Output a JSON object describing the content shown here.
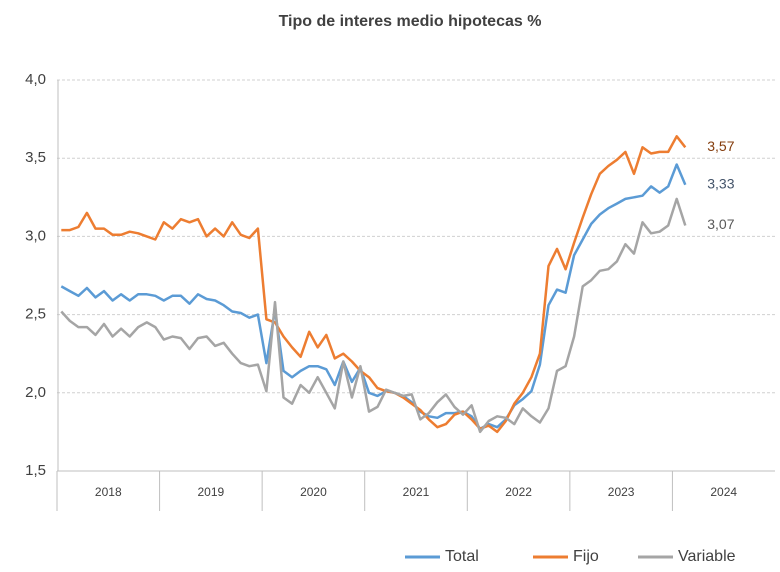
{
  "chart_data": {
    "type": "line",
    "title": "Tipo de interes medio hipotecas %",
    "categories": [
      null,
      null,
      null,
      null,
      null,
      null,
      "2018",
      null,
      null,
      null,
      null,
      null,
      null,
      null,
      null,
      null,
      null,
      null,
      "2019",
      null,
      null,
      null,
      null,
      null,
      null,
      null,
      null,
      null,
      null,
      null,
      "2020",
      null,
      null,
      null,
      null,
      null,
      null,
      null,
      null,
      null,
      null,
      null,
      "2021",
      null,
      null,
      null,
      null,
      null,
      null,
      null,
      null,
      null,
      null,
      null,
      "2022",
      null,
      null,
      null,
      null,
      null,
      null,
      null,
      null,
      null,
      null,
      null,
      "2023",
      null,
      null,
      null,
      null,
      null,
      null,
      null,
      null,
      null,
      null,
      null,
      "2024",
      null,
      null,
      null,
      null,
      null
    ],
    "series": [
      {
        "name": "Total",
        "color": "#5b9bd5",
        "label_color": "#44546a",
        "values": [
          2.68,
          2.65,
          2.62,
          2.67,
          2.61,
          2.65,
          2.59,
          2.63,
          2.59,
          2.63,
          2.63,
          2.62,
          2.59,
          2.62,
          2.62,
          2.57,
          2.63,
          2.6,
          2.59,
          2.56,
          2.52,
          2.51,
          2.48,
          2.5,
          2.19,
          2.53,
          2.14,
          2.1,
          2.14,
          2.17,
          2.17,
          2.15,
          2.05,
          2.2,
          2.07,
          2.16,
          2.0,
          1.98,
          2.01,
          2.0,
          1.98,
          1.94,
          1.88,
          1.85,
          1.84,
          1.87,
          1.87,
          1.88,
          1.85,
          1.77,
          1.8,
          1.78,
          1.83,
          1.92,
          1.96,
          2.01,
          2.18,
          2.56,
          2.66,
          2.64,
          2.88,
          2.98,
          3.08,
          3.14,
          3.18,
          3.21,
          3.24,
          3.25,
          3.26,
          3.32,
          3.28,
          3.32,
          3.46,
          3.33,
          null,
          null,
          null,
          null,
          null,
          null,
          null,
          null,
          null,
          null
        ],
        "value_labels": [
          null,
          null,
          null,
          null,
          null,
          null,
          null,
          null,
          null,
          null,
          null,
          null,
          null,
          null,
          null,
          null,
          null,
          null,
          null,
          null,
          null,
          null,
          null,
          null,
          null,
          null,
          null,
          null,
          null,
          null,
          null,
          null,
          null,
          null,
          null,
          null,
          null,
          null,
          null,
          null,
          null,
          null,
          null,
          null,
          null,
          null,
          null,
          null,
          null,
          null,
          null,
          null,
          null,
          null,
          null,
          null,
          null,
          null,
          null,
          null,
          null,
          null,
          null,
          null,
          null,
          null,
          null,
          null,
          null,
          null,
          null,
          null,
          null,
          "3,33",
          null,
          null,
          null,
          null,
          null,
          null,
          null,
          null,
          null,
          null
        ]
      },
      {
        "name": "Fijo",
        "color": "#ed7d31",
        "label_color": "#843c0c",
        "values": [
          3.04,
          3.04,
          3.06,
          3.15,
          3.05,
          3.05,
          3.01,
          3.01,
          3.03,
          3.02,
          3.0,
          2.98,
          3.09,
          3.05,
          3.11,
          3.09,
          3.11,
          3.0,
          3.05,
          3.0,
          3.09,
          3.01,
          2.99,
          3.05,
          2.47,
          2.45,
          2.36,
          2.29,
          2.23,
          2.39,
          2.29,
          2.37,
          2.22,
          2.25,
          2.2,
          2.14,
          2.1,
          2.03,
          2.01,
          2.0,
          1.97,
          1.93,
          1.89,
          1.83,
          1.78,
          1.8,
          1.86,
          1.88,
          1.83,
          1.77,
          1.79,
          1.75,
          1.82,
          1.93,
          2.0,
          2.1,
          2.25,
          2.81,
          2.92,
          2.79,
          2.96,
          3.12,
          3.27,
          3.4,
          3.45,
          3.49,
          3.54,
          3.4,
          3.57,
          3.53,
          3.54,
          3.54,
          3.64,
          3.57,
          null,
          null,
          null,
          null,
          null,
          null,
          null,
          null,
          null,
          null
        ],
        "value_labels": [
          null,
          null,
          null,
          null,
          null,
          null,
          null,
          null,
          null,
          null,
          null,
          null,
          null,
          null,
          null,
          null,
          null,
          null,
          null,
          null,
          null,
          null,
          null,
          null,
          null,
          null,
          null,
          null,
          null,
          null,
          null,
          null,
          null,
          null,
          null,
          null,
          null,
          null,
          null,
          null,
          null,
          null,
          null,
          null,
          null,
          null,
          null,
          null,
          null,
          null,
          null,
          null,
          null,
          null,
          null,
          null,
          null,
          null,
          null,
          null,
          null,
          null,
          null,
          null,
          null,
          null,
          null,
          null,
          null,
          null,
          null,
          null,
          null,
          "3,57",
          null,
          null,
          null,
          null,
          null,
          null,
          null,
          null,
          null,
          null
        ]
      },
      {
        "name": "Variable",
        "color": "#a5a5a5",
        "label_color": "#595959",
        "values": [
          2.52,
          2.46,
          2.42,
          2.42,
          2.37,
          2.44,
          2.36,
          2.41,
          2.36,
          2.42,
          2.45,
          2.42,
          2.34,
          2.36,
          2.35,
          2.28,
          2.35,
          2.36,
          2.3,
          2.32,
          2.25,
          2.19,
          2.17,
          2.18,
          2.01,
          2.58,
          1.97,
          1.93,
          2.05,
          2.0,
          2.1,
          2.0,
          1.9,
          2.2,
          1.97,
          2.17,
          1.88,
          1.91,
          2.02,
          2.0,
          1.98,
          1.99,
          1.83,
          1.87,
          1.94,
          1.99,
          1.91,
          1.86,
          1.92,
          1.75,
          1.82,
          1.85,
          1.84,
          1.8,
          1.9,
          1.85,
          1.81,
          1.9,
          2.14,
          2.17,
          2.36,
          2.68,
          2.72,
          2.78,
          2.79,
          2.84,
          2.95,
          2.89,
          3.09,
          3.02,
          3.03,
          3.07,
          3.24,
          3.07,
          null,
          null,
          null,
          null,
          null,
          null,
          null,
          null,
          null,
          null
        ],
        "value_labels": [
          null,
          null,
          null,
          null,
          null,
          null,
          null,
          null,
          null,
          null,
          null,
          null,
          null,
          null,
          null,
          null,
          null,
          null,
          null,
          null,
          null,
          null,
          null,
          null,
          null,
          null,
          null,
          null,
          null,
          null,
          null,
          null,
          null,
          null,
          null,
          null,
          null,
          null,
          null,
          null,
          null,
          null,
          null,
          null,
          null,
          null,
          null,
          null,
          null,
          null,
          null,
          null,
          null,
          null,
          null,
          null,
          null,
          null,
          null,
          null,
          null,
          null,
          null,
          null,
          null,
          null,
          null,
          null,
          null,
          null,
          null,
          null,
          null,
          "3,07",
          null,
          null,
          null,
          null,
          null,
          null,
          null,
          null,
          null,
          null
        ]
      }
    ],
    "ylim": [
      1.5,
      4.0
    ],
    "yticks": [
      {
        "value": 1.5,
        "label": "1,5"
      },
      {
        "value": 2.0,
        "label": "2,0"
      },
      {
        "value": 2.5,
        "label": "2,5"
      },
      {
        "value": 3.0,
        "label": "3,0"
      },
      {
        "value": 3.5,
        "label": "3,5"
      },
      {
        "value": 4.0,
        "label": "4,0"
      }
    ],
    "grid": true,
    "legend": "bottom"
  }
}
